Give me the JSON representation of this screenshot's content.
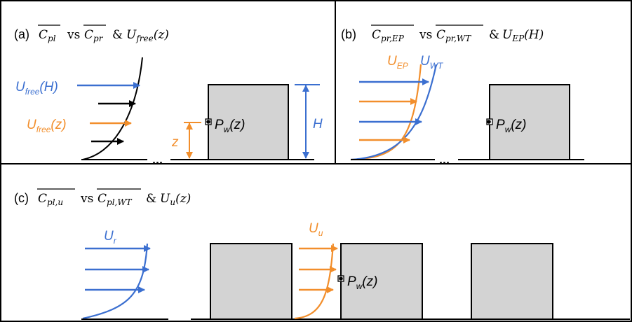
{
  "colors": {
    "blue": "#3b6fd0",
    "orange": "#f28e2b",
    "building_fill": "#d3d3d3",
    "black": "#000000"
  },
  "panel_a": {
    "tag": "(a)",
    "coef1": "C",
    "coef1_sub": "pl",
    "vs": "vs",
    "coef2": "C",
    "coef2_sub": "pr",
    "amp": "&",
    "velocity": "U",
    "velocity_sub": "free",
    "velocity_arg": "(z)",
    "u_free_h": "U",
    "u_free_h_sub": "free",
    "u_free_h_arg": "(H)",
    "u_free_z": "U",
    "u_free_z_sub": "free",
    "u_free_z_arg": "(z)",
    "z_label": "z",
    "h_label": "H",
    "pw": "P",
    "pw_sub": "w",
    "pw_arg": "(z)",
    "ellipsis": "..."
  },
  "panel_b": {
    "tag": "(b)",
    "coef1": "C",
    "coef1_sub": "pr,EP",
    "vs": "vs",
    "coef2": "C",
    "coef2_sub": "pr,WT",
    "amp": "&",
    "velocity": "U",
    "velocity_sub": "EP",
    "velocity_arg": "(H)",
    "u_ep": "U",
    "u_ep_sub": "EP",
    "u_wt": "U",
    "u_wt_sub": "WT",
    "pw": "P",
    "pw_sub": "w",
    "pw_arg": "(z)",
    "ellipsis": "..."
  },
  "panel_c": {
    "tag": "(c)",
    "coef1": "C",
    "coef1_sub": "pl,u",
    "vs": "vs",
    "coef2": "C",
    "coef2_sub": "pl,WT",
    "amp": "&",
    "velocity": "U",
    "velocity_sub": "u",
    "velocity_arg": "(z)",
    "u_r": "U",
    "u_r_sub": "r",
    "u_u": "U",
    "u_u_sub": "u",
    "pw": "P",
    "pw_sub": "w",
    "pw_arg": "(z)",
    "ellipsis": "..."
  }
}
